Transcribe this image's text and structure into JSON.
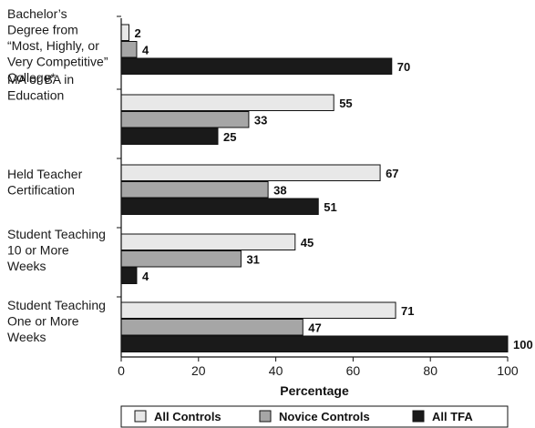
{
  "chart_data": {
    "type": "bar",
    "orientation": "horizontal",
    "categories": [
      [
        "Bachelor’s",
        "Degree from",
        "“Most, Highly, or",
        "Very Competitive”",
        "College*"
      ],
      [
        "MA or BA in",
        "Education"
      ],
      [
        "Held Teacher",
        "Certification"
      ],
      [
        "Student Teaching",
        "10 or More",
        "Weeks"
      ],
      [
        "Student Teaching",
        "One or More",
        "Weeks"
      ]
    ],
    "series": [
      {
        "name": "All Controls",
        "color": "#e8e8e8",
        "values": [
          2,
          55,
          67,
          45,
          71
        ]
      },
      {
        "name": "Novice Controls",
        "color": "#a6a6a6",
        "values": [
          4,
          33,
          38,
          31,
          47
        ]
      },
      {
        "name": "All TFA",
        "color": "#1a1a1a",
        "values": [
          70,
          25,
          51,
          4,
          100
        ]
      }
    ],
    "xlabel": "Percentage",
    "xlim": [
      0,
      100
    ],
    "xticks": [
      0,
      20,
      40,
      60,
      80,
      100
    ],
    "grid": false,
    "legend_position": "bottom"
  }
}
